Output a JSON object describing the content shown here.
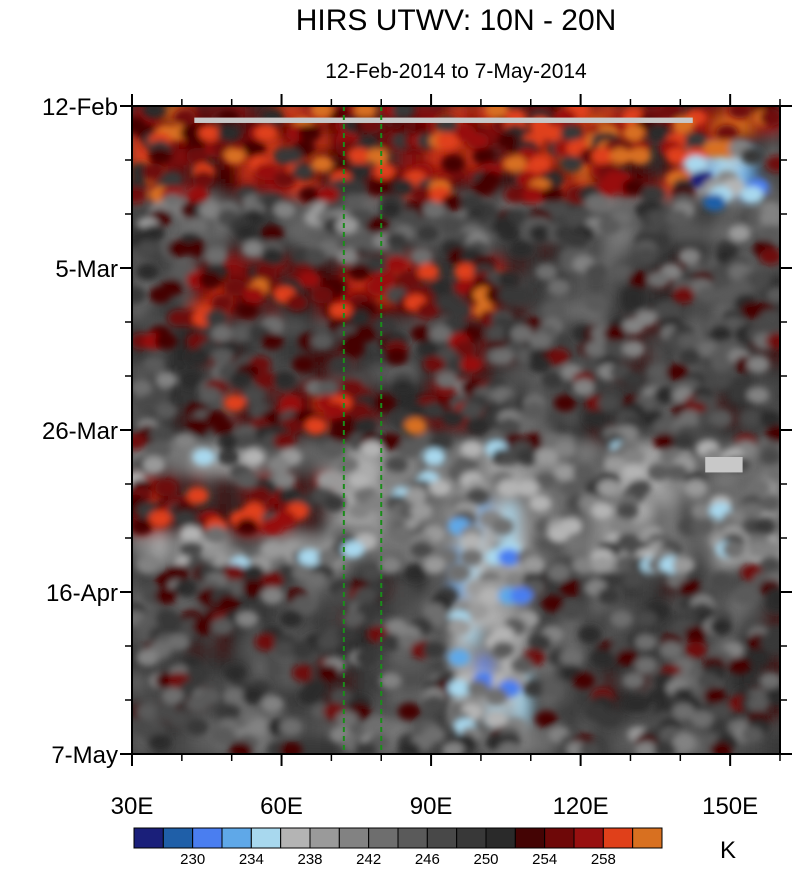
{
  "chart_data": {
    "type": "heatmap",
    "title": "HIRS UTWV: 10N - 20N",
    "subtitle": "12-Feb-2014 to 7-May-2014",
    "x_axis": {
      "range": [
        30,
        160
      ],
      "ticks": [
        30,
        60,
        90,
        120,
        150
      ],
      "tick_labels": [
        "30E",
        "60E",
        "90E",
        "120E",
        "150E"
      ]
    },
    "y_axis": {
      "range": [
        "12-Feb-2014",
        "7-May-2014"
      ],
      "ticks": [
        0,
        21,
        42,
        63,
        84
      ],
      "tick_labels": [
        "12-Feb",
        "5-Mar",
        "26-Mar",
        "16-Apr",
        "7-May"
      ],
      "direction": "time increasing downward"
    },
    "reference_lines": [
      {
        "type": "vertical",
        "x": 72.5,
        "style": "dashed",
        "color": "#1a8c1a"
      },
      {
        "type": "vertical",
        "x": 80,
        "style": "dashed",
        "color": "#1a8c1a"
      }
    ],
    "missing_data_color": "#c8c8c8",
    "colorbar": {
      "unit": "K",
      "levels": [
        228,
        230,
        232,
        234,
        236,
        238,
        240,
        242,
        244,
        246,
        248,
        250,
        252,
        254,
        256,
        258,
        260
      ],
      "labels": [
        "230",
        "234",
        "238",
        "242",
        "246",
        "250",
        "254",
        "258"
      ],
      "colors": [
        "#1a1f7a",
        "#1f5fa8",
        "#4a7ef0",
        "#5fa8e8",
        "#a8d8ee",
        "#b4b4b4",
        "#9a9a9a",
        "#828282",
        "#6e6e6e",
        "#5a5a5a",
        "#484848",
        "#383838",
        "#2a2a2a",
        "#440404",
        "#6e0808",
        "#981010",
        "#e0401a",
        "#d87020"
      ]
    },
    "features": [
      {
        "day_range": [
          0,
          3
        ],
        "lon_range": [
          30,
          160
        ],
        "value_K": 256
      },
      {
        "day_range": [
          1.5,
          2.2
        ],
        "lon_range": [
          42.5,
          142.5
        ],
        "value": "missing"
      },
      {
        "day_range": [
          3,
          12
        ],
        "lon_range": [
          30,
          150
        ],
        "value_K": 255
      },
      {
        "day_range": [
          7,
          13
        ],
        "lon_range": [
          142,
          156
        ],
        "value_K": 234
      },
      {
        "day_range": [
          13,
          18
        ],
        "lon_range": [
          30,
          160
        ],
        "value_K": 246
      },
      {
        "day_range": [
          20,
          28
        ],
        "lon_range": [
          42,
          105
        ],
        "value_K": 254
      },
      {
        "day_range": [
          30,
          34
        ],
        "lon_range": [
          30,
          120
        ],
        "value_K": 250
      },
      {
        "day_range": [
          37,
          42
        ],
        "lon_range": [
          50,
          100
        ],
        "value_K": 254
      },
      {
        "day_range": [
          44,
          60
        ],
        "lon_range": [
          30,
          160
        ],
        "value_K": 242
      },
      {
        "day_range": [
          45.5,
          47.5
        ],
        "lon_range": [
          145,
          152.5
        ],
        "value": "missing"
      },
      {
        "day_range": [
          49,
          55
        ],
        "lon_range": [
          30,
          70
        ],
        "value_K": 253
      },
      {
        "day_range": [
          52,
          84
        ],
        "lon_range": [
          95,
          110
        ],
        "value_K": 238
      },
      {
        "day_range": [
          72,
          74
        ],
        "lon_range": [
          99,
          103
        ],
        "value_K": 230
      },
      {
        "day_range": [
          81,
          84
        ],
        "lon_range": [
          30,
          160
        ],
        "value_K": 246
      }
    ]
  }
}
